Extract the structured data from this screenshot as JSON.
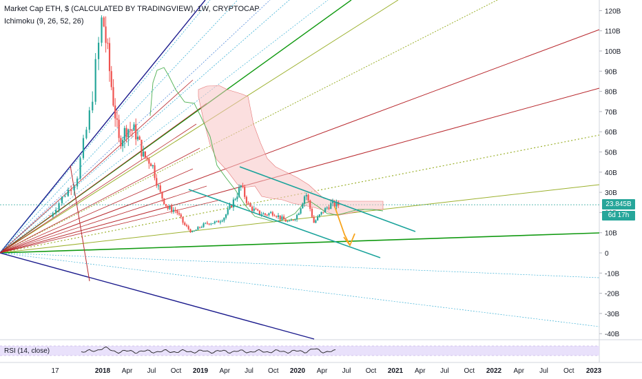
{
  "header": {
    "title": "Market Cap ETH, $ (CALCULATED BY TRADINGVIEW), 1W, CRYPTOCAP",
    "indicator": "Ichimoku (9, 26, 52, 26)"
  },
  "rsi_panel": {
    "label": "RSI (14, close)"
  },
  "price_badge": {
    "value": "23.845B",
    "countdown": "6d 17h"
  },
  "colors": {
    "up_candle": "#26a69a",
    "down_candle": "#ef5350",
    "cloud": "#f7c5c5",
    "channel": "#1aa39b",
    "arrow": "#f7a41d",
    "fan_navy": "#1a1a8c",
    "fan_green": "#109910",
    "fan_red": "#b8282d",
    "fan_olive": "#9bb02c"
  },
  "chart_data": {
    "type": "candlestick",
    "ylim": [
      -42,
      126
    ],
    "y_ticks": [
      "120B",
      "110B",
      "100B",
      "90B",
      "80B",
      "70B",
      "60B",
      "50B",
      "40B",
      "30B",
      "20B",
      "10B",
      "0",
      "-10B",
      "-20B",
      "-30B",
      "-40B"
    ],
    "x_ticks": [
      "17",
      "2018",
      "Apr",
      "Jul",
      "Oct",
      "2019",
      "Apr",
      "Jul",
      "Oct",
      "2020",
      "Apr",
      "Jul",
      "Oct",
      "2021",
      "Apr",
      "Jul",
      "Oct",
      "2022",
      "Apr",
      "Jul",
      "Oct",
      "2023"
    ],
    "last_value": 23.845,
    "units": "B USD",
    "price_path": [
      {
        "date": "2017-09",
        "value": 18
      },
      {
        "date": "2017-10",
        "value": 28
      },
      {
        "date": "2017-11",
        "value": 36
      },
      {
        "date": "2017-12",
        "value": 68
      },
      {
        "date": "2018-01",
        "value": 118
      },
      {
        "date": "2018-02",
        "value": 85
      },
      {
        "date": "2018-03",
        "value": 55
      },
      {
        "date": "2018-04",
        "value": 62
      },
      {
        "date": "2018-05",
        "value": 60
      },
      {
        "date": "2018-06",
        "value": 48
      },
      {
        "date": "2018-07",
        "value": 45
      },
      {
        "date": "2018-08",
        "value": 30
      },
      {
        "date": "2018-09",
        "value": 22
      },
      {
        "date": "2018-10",
        "value": 21
      },
      {
        "date": "2018-11",
        "value": 14
      },
      {
        "date": "2018-12",
        "value": 10
      },
      {
        "date": "2019-01",
        "value": 13
      },
      {
        "date": "2019-02",
        "value": 15
      },
      {
        "date": "2019-03",
        "value": 15
      },
      {
        "date": "2019-04",
        "value": 18
      },
      {
        "date": "2019-05",
        "value": 25
      },
      {
        "date": "2019-06",
        "value": 33
      },
      {
        "date": "2019-07",
        "value": 23
      },
      {
        "date": "2019-08",
        "value": 20
      },
      {
        "date": "2019-09",
        "value": 19
      },
      {
        "date": "2019-10",
        "value": 20
      },
      {
        "date": "2019-11",
        "value": 17
      },
      {
        "date": "2019-12",
        "value": 15
      },
      {
        "date": "2020-01",
        "value": 19
      },
      {
        "date": "2020-02",
        "value": 30
      },
      {
        "date": "2020-03",
        "value": 15
      },
      {
        "date": "2020-04",
        "value": 20
      },
      {
        "date": "2020-05",
        "value": 24
      },
      {
        "date": "2020-06",
        "value": 23.845
      }
    ]
  }
}
